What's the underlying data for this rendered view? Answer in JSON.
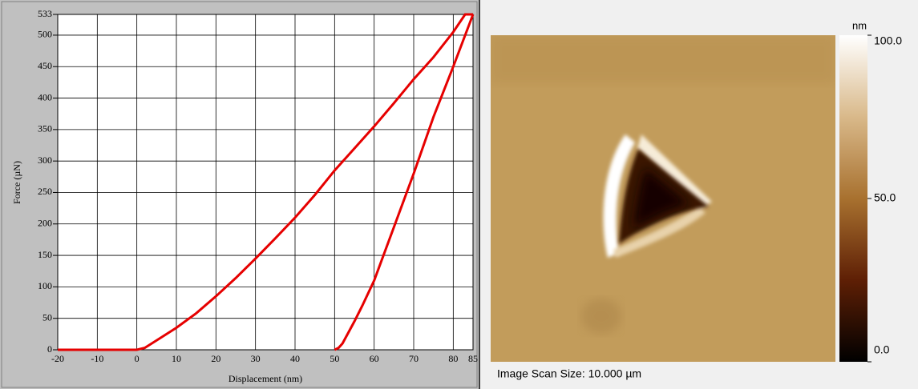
{
  "chart_data": [
    {
      "type": "line",
      "xlabel": "Displacement (nm)",
      "ylabel": "Force (µN)",
      "xlim": [
        -20,
        85
      ],
      "ylim": [
        0,
        533
      ],
      "xticks": [
        -20,
        -10,
        0,
        10,
        20,
        30,
        40,
        50,
        60,
        70,
        80,
        85
      ],
      "yticks": [
        0,
        50,
        100,
        150,
        200,
        250,
        300,
        350,
        400,
        450,
        500,
        533
      ],
      "grid": true,
      "series": [
        {
          "color": "#e60000",
          "x": [
            -20,
            -10,
            0,
            2,
            5,
            10,
            15,
            20,
            25,
            30,
            35,
            40,
            45,
            50,
            55,
            60,
            65,
            70,
            75,
            80,
            83,
            85
          ],
          "values": [
            0,
            0,
            0,
            3,
            15,
            35,
            58,
            85,
            114,
            145,
            177,
            210,
            246,
            285,
            320,
            355,
            392,
            430,
            465,
            505,
            533,
            533
          ]
        },
        {
          "color": "#e60000",
          "x": [
            85,
            80,
            75,
            70,
            65,
            60,
            57,
            55,
            52,
            51,
            50
          ],
          "values": [
            533,
            450,
            370,
            280,
            195,
            110,
            70,
            45,
            10,
            3,
            0
          ]
        }
      ]
    },
    {
      "type": "image",
      "caption": "Image Scan Size: 10.000 µm",
      "zlabel": "nm",
      "zlim": [
        0,
        100
      ],
      "zticks": [
        {
          "value": 0,
          "label": "0.0"
        },
        {
          "value": 50,
          "label": "50.0"
        },
        {
          "value": 100,
          "label": "100.0"
        }
      ],
      "colormap": [
        "#000000",
        "#5e1f05",
        "#a8712f",
        "#d9b98a",
        "#ffffff"
      ]
    }
  ]
}
